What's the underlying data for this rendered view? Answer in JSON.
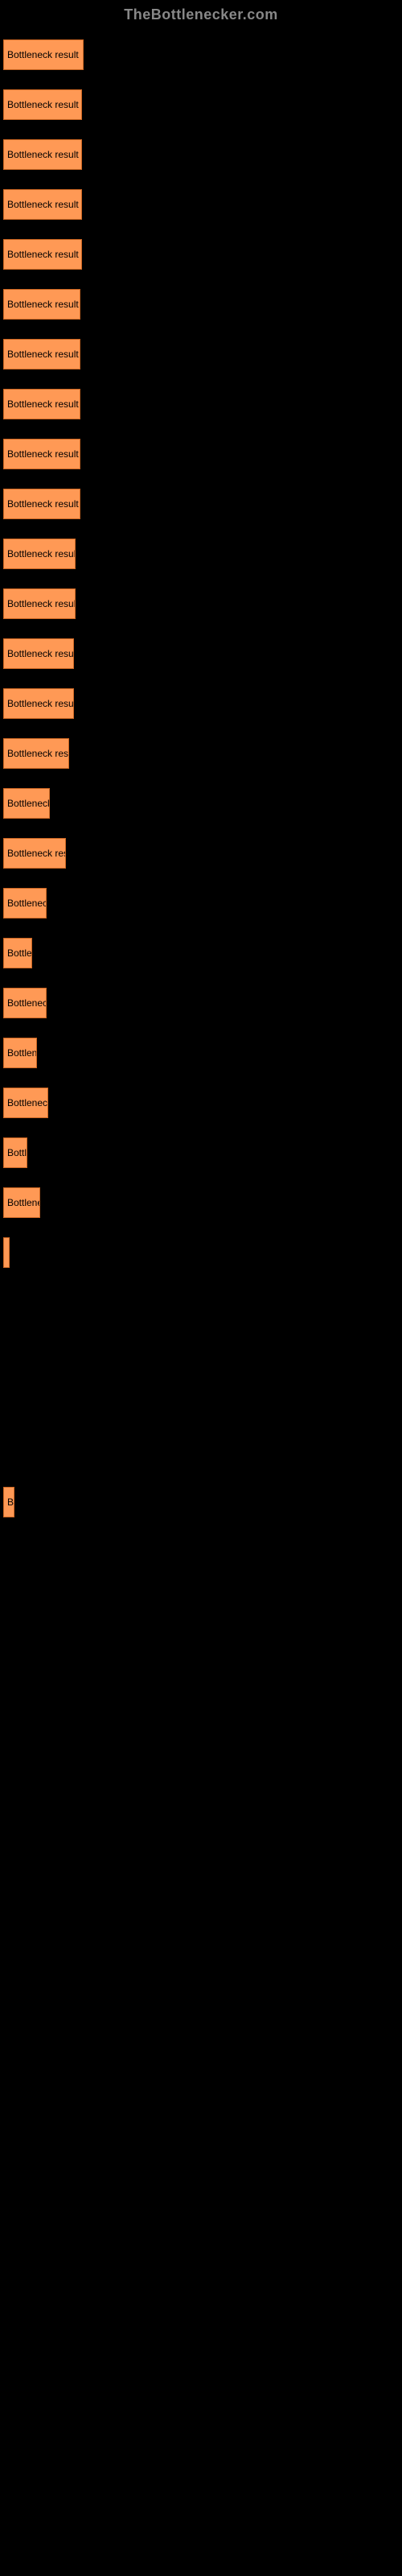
{
  "header": "TheBottlenecker.com",
  "chart": {
    "type": "bar",
    "background_color": "#000000",
    "bar_color": "#ff9955",
    "bar_border_color": "#cc6622",
    "label_color": "#000000",
    "label_fontsize": 12,
    "max_width": 100,
    "bars": [
      {
        "label": "Bottleneck result",
        "width": 100
      },
      {
        "label": "Bottleneck result",
        "width": 98
      },
      {
        "label": "Bottleneck result",
        "width": 98
      },
      {
        "label": "Bottleneck result",
        "width": 98
      },
      {
        "label": "Bottleneck result",
        "width": 98
      },
      {
        "label": "Bottleneck result",
        "width": 96
      },
      {
        "label": "Bottleneck result",
        "width": 96
      },
      {
        "label": "Bottleneck result",
        "width": 96
      },
      {
        "label": "Bottleneck result",
        "width": 96
      },
      {
        "label": "Bottleneck result",
        "width": 96
      },
      {
        "label": "Bottleneck result",
        "width": 90
      },
      {
        "label": "Bottleneck result",
        "width": 90
      },
      {
        "label": "Bottleneck result",
        "width": 88
      },
      {
        "label": "Bottleneck result",
        "width": 88
      },
      {
        "label": "Bottleneck resu",
        "width": 82
      },
      {
        "label": "Bottleneck",
        "width": 58
      },
      {
        "label": "Bottleneck res",
        "width": 78
      },
      {
        "label": "Bottleneck",
        "width": 54
      },
      {
        "label": "Bottle",
        "width": 36
      },
      {
        "label": "Bottleneck",
        "width": 54
      },
      {
        "label": "Bottlene",
        "width": 42
      },
      {
        "label": "Bottleneck",
        "width": 56
      },
      {
        "label": "Bottl",
        "width": 30
      },
      {
        "label": "Bottlene",
        "width": 46
      },
      {
        "label": "",
        "width": 8
      },
      {
        "label": "",
        "width": 0
      },
      {
        "label": "",
        "width": 0
      },
      {
        "label": "",
        "width": 0
      },
      {
        "label": "",
        "width": 0
      },
      {
        "label": "B",
        "width": 14
      },
      {
        "label": "",
        "width": 0
      },
      {
        "label": "",
        "width": 0
      },
      {
        "label": "",
        "width": 0
      },
      {
        "label": "",
        "width": 0
      },
      {
        "label": "",
        "width": 0
      },
      {
        "label": "",
        "width": 0
      },
      {
        "label": "",
        "width": 0
      },
      {
        "label": "",
        "width": 0
      },
      {
        "label": "",
        "width": 0
      },
      {
        "label": "",
        "width": 0
      },
      {
        "label": "",
        "width": 0
      },
      {
        "label": "",
        "width": 0
      },
      {
        "label": "",
        "width": 0
      },
      {
        "label": "",
        "width": 0
      },
      {
        "label": "",
        "width": 0
      },
      {
        "label": "",
        "width": 0
      },
      {
        "label": "",
        "width": 0
      },
      {
        "label": "",
        "width": 0
      },
      {
        "label": "",
        "width": 0
      },
      {
        "label": "",
        "width": 0
      }
    ]
  }
}
